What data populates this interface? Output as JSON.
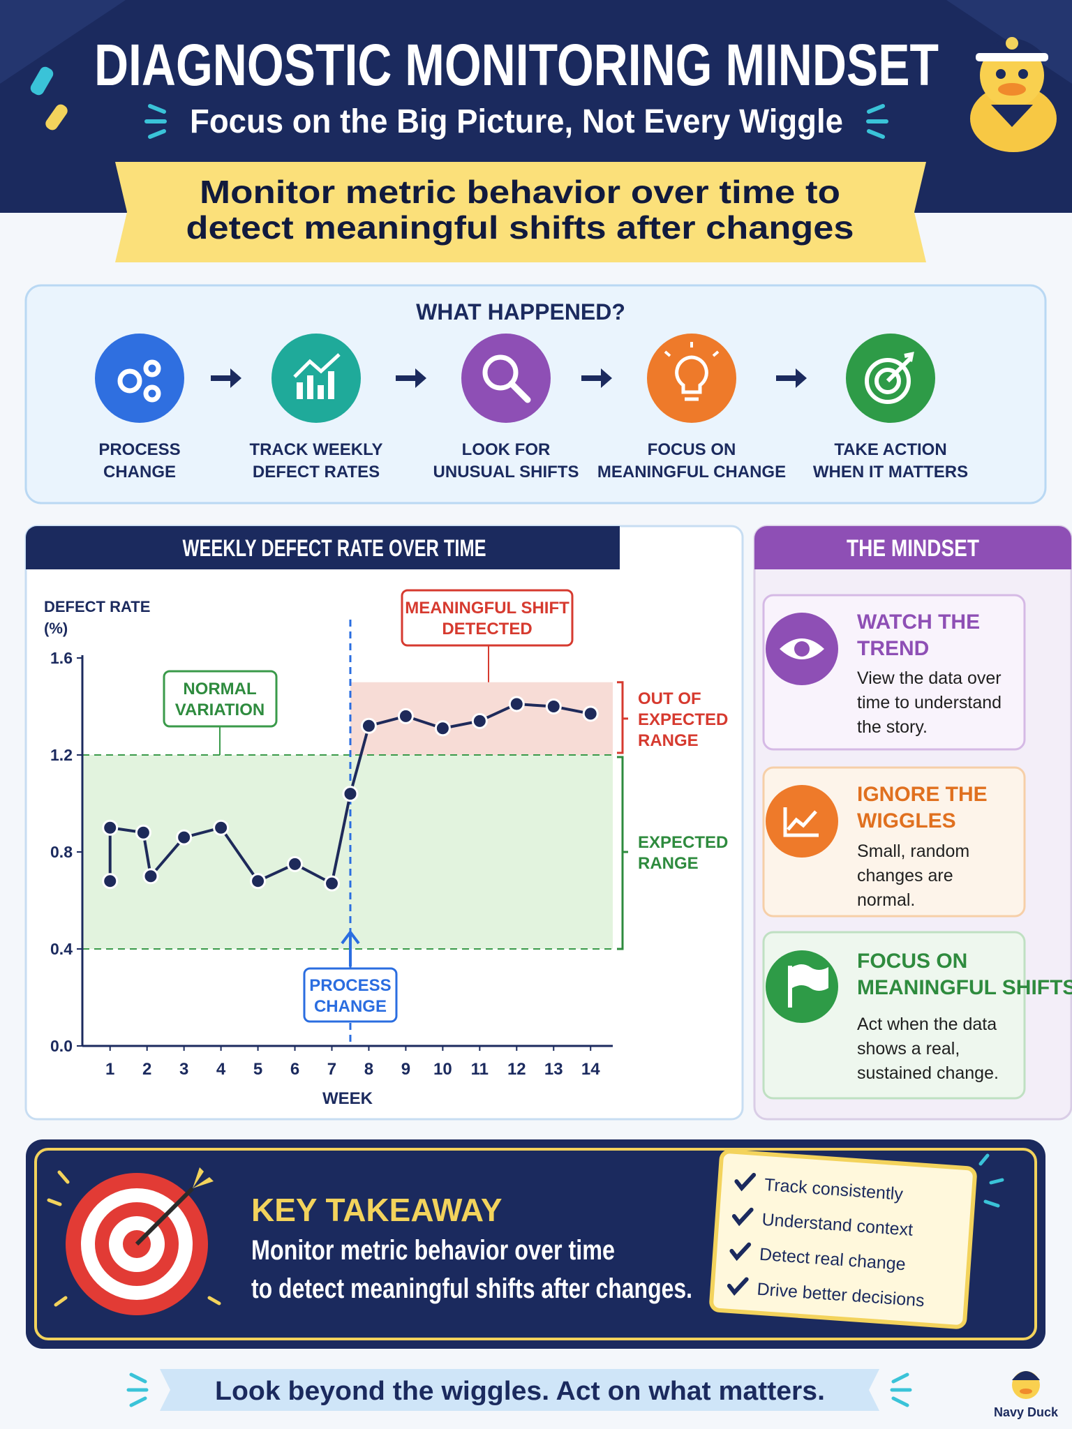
{
  "header": {
    "title": "DIAGNOSTIC MONITORING MINDSET",
    "subtitle": "Focus on the Big Picture, Not Every Wiggle",
    "banner": [
      "Monitor metric behavior over time to",
      "detect meaningful shifts after changes"
    ]
  },
  "process": {
    "title": "WHAT HAPPENED?",
    "steps": [
      [
        "PROCESS",
        "CHANGE"
      ],
      [
        "TRACK WEEKLY",
        "DEFECT RATES"
      ],
      [
        "LOOK FOR",
        "UNUSUAL SHIFTS"
      ],
      [
        "FOCUS ON",
        "MEANINGFUL CHANGE"
      ],
      [
        "TAKE ACTION",
        "WHEN IT MATTERS"
      ]
    ]
  },
  "chart_data": {
    "type": "line",
    "title": "WEEKLY DEFECT RATE OVER TIME",
    "y_label": [
      "DEFECT RATE",
      "(%)"
    ],
    "x_label": "WEEK",
    "x": [
      1,
      1,
      1.9,
      2.1,
      3,
      4,
      5,
      6,
      7,
      7.5,
      8,
      9,
      10,
      11,
      12,
      13,
      14
    ],
    "values": [
      0.68,
      0.9,
      0.88,
      0.7,
      0.86,
      0.9,
      0.68,
      0.75,
      0.67,
      1.04,
      1.32,
      1.36,
      1.31,
      1.34,
      1.41,
      1.4,
      1.37
    ],
    "color": "#1e2a5a",
    "xlim": [
      0.25,
      14.6
    ],
    "xticks": [
      1,
      2,
      3,
      4,
      5,
      6,
      7,
      8,
      9,
      10,
      11,
      12,
      13,
      14
    ],
    "ylim": [
      0,
      1.6
    ],
    "yticks": [
      {
        "value": 0,
        "label": "0.0"
      },
      0.4,
      0.8,
      1.2,
      1.6
    ],
    "grid": false,
    "expected_range": [
      0.4,
      1.2
    ],
    "shift_band": [
      1.2,
      1.5
    ],
    "change_x": 7.5,
    "annotations": {
      "normal_variation": [
        "NORMAL",
        "VARIATION"
      ],
      "shift_detected": [
        "MEANINGFUL SHIFT",
        "DETECTED"
      ],
      "out_of_range": [
        "OUT OF",
        "EXPECTED",
        "RANGE"
      ],
      "expected": [
        "EXPECTED",
        "RANGE"
      ],
      "process_change": [
        "PROCESS",
        "CHANGE"
      ]
    }
  },
  "mindset": {
    "title": "THE MINDSET",
    "cards": [
      {
        "title": [
          "WATCH THE",
          "TREND"
        ],
        "text": [
          "View the data over",
          "time to understand",
          "the story."
        ]
      },
      {
        "title": [
          "IGNORE THE",
          "WIGGLES"
        ],
        "text": [
          "Small, random",
          "changes are",
          "normal."
        ]
      },
      {
        "title": [
          "FOCUS ON",
          "MEANINGFUL SHIFTS"
        ],
        "text": [
          "Act when the data",
          "shows a real,",
          "sustained change."
        ]
      }
    ]
  },
  "takeaway": {
    "title": "KEY TAKEAWAY",
    "text": [
      "Monitor metric behavior over time",
      "to detect meaningful shifts after changes."
    ],
    "checklist": [
      "Track consistently",
      "Understand context",
      "Detect real change",
      "Drive better decisions"
    ]
  },
  "footer": {
    "text": "Look beyond the wiggles. Act on what matters.",
    "brand": "Navy Duck"
  }
}
